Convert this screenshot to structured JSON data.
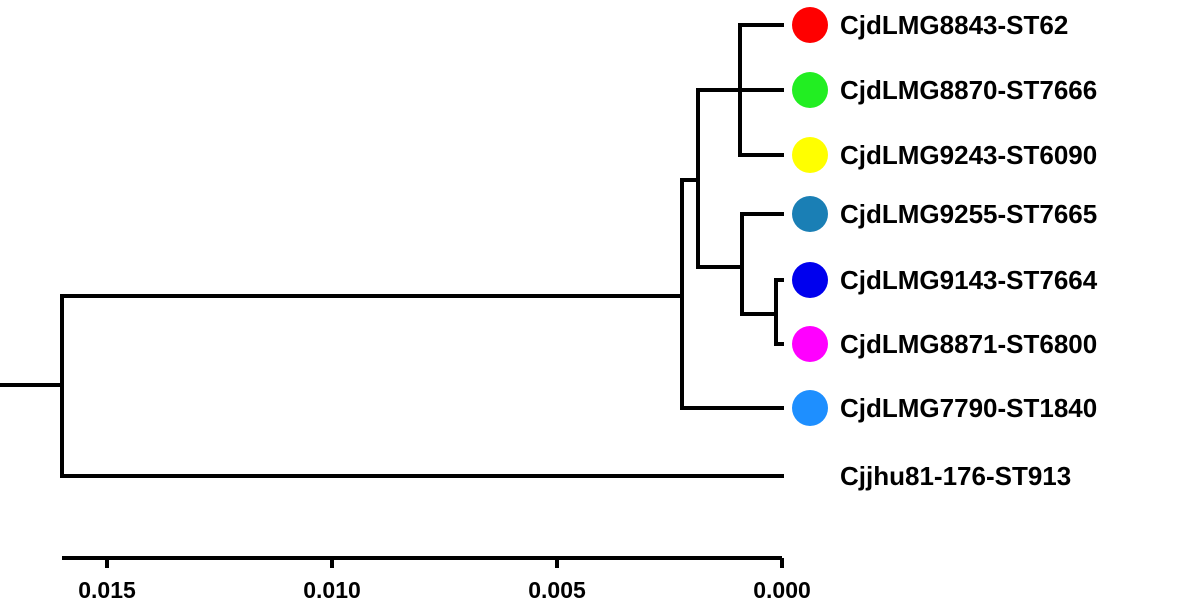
{
  "taxa": [
    {
      "label": "CjdLMG8843-ST62",
      "color": "#ff0000"
    },
    {
      "label": "CjdLMG8870-ST7666",
      "color": "#22ee22"
    },
    {
      "label": "CjdLMG9243-ST6090",
      "color": "#ffff00"
    },
    {
      "label": "CjdLMG9255-ST7665",
      "color": "#1a7fb5"
    },
    {
      "label": "CjdLMG9143-ST7664",
      "color": "#0000ee"
    },
    {
      "label": "CjdLMG8871-ST6800",
      "color": "#ff00ff"
    },
    {
      "label": "CjdLMG7790-ST1840",
      "color": "#1e8fff"
    },
    {
      "label": "Cjjhu81-176-ST913",
      "color": null
    }
  ],
  "axis": {
    "ticks": [
      0.015,
      0.01,
      0.005,
      0.0
    ],
    "tick_labels": [
      "0.015",
      "0.010",
      "0.005",
      "0.000"
    ]
  }
}
